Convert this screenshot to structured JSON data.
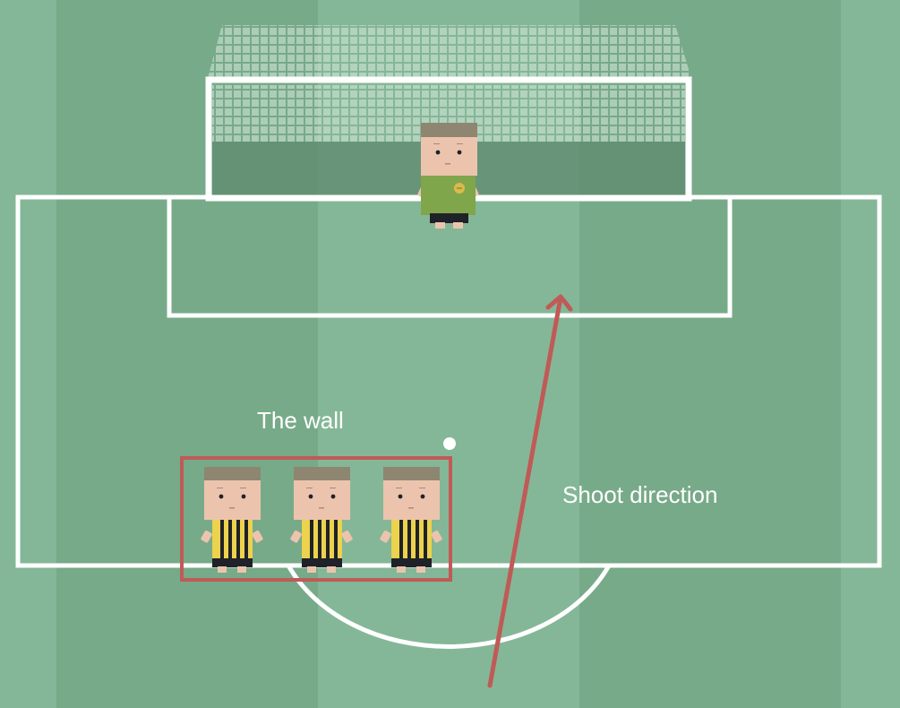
{
  "labels": {
    "wall": "The wall",
    "shoot_direction": "Shoot direction"
  },
  "colors": {
    "pitch_light": "#84b797",
    "pitch_dark": "#77aa89",
    "lines": "#ffffff",
    "annotation": "#c05a57",
    "goal_shadow": "#5f8a6f",
    "goalkeeper_shirt": "#7fa64a",
    "wall_shirt": "#ecd24d",
    "wall_stripes": "#1f2228",
    "skin": "#ecc4ae",
    "hair": "#8e8671",
    "shorts": "#1f2228"
  },
  "icons": {
    "goalkeeper": "goalkeeper-player-icon",
    "wall_player": "wall-player-icon",
    "ball": "ball-icon"
  },
  "players": {
    "goalkeeper_count": 1,
    "wall_count": 3
  }
}
